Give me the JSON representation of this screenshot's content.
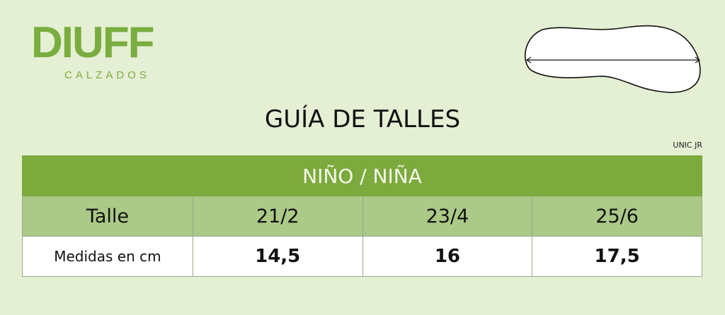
{
  "brand": {
    "name": "DIUFF",
    "subtitle": "CALZADOS",
    "color": "#7aad3f"
  },
  "illustration": {
    "icon": "foot-outline-with-length-arrow"
  },
  "title": "GUÍA DE TALLES",
  "model": "UNIC JR",
  "table": {
    "section": "NIÑO / NIÑA",
    "header": [
      "Talle",
      "21/2",
      "23/4",
      "25/6"
    ],
    "row": [
      "Medidas en cm",
      "14,5",
      "16",
      "17,5"
    ],
    "colors": {
      "section_bg": "#7daa3c",
      "header_bg": "#abc987",
      "row_bg": "#ffffff"
    }
  }
}
